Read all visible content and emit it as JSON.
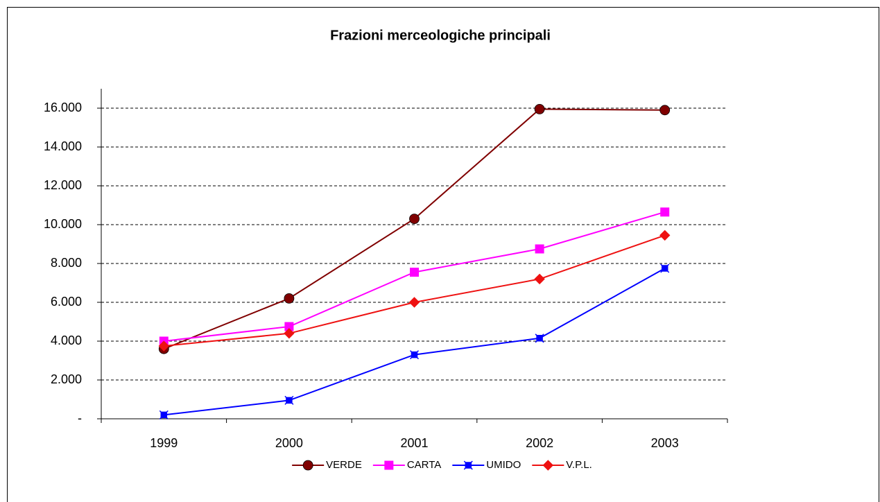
{
  "chart_data": {
    "type": "line",
    "title": "Frazioni merceologiche principali",
    "categories": [
      "1999",
      "2000",
      "2001",
      "2002",
      "2003"
    ],
    "series": [
      {
        "name": "VERDE",
        "color": "#800000",
        "marker": "circle",
        "values": [
          3600,
          6200,
          10300,
          15950,
          15900
        ]
      },
      {
        "name": "CARTA",
        "color": "#ff00ff",
        "marker": "square",
        "values": [
          4000,
          4750,
          7550,
          8750,
          10650
        ]
      },
      {
        "name": "UMIDO",
        "color": "#0000ff",
        "marker": "star",
        "values": [
          200,
          950,
          3300,
          4150,
          7750
        ]
      },
      {
        "name": "V.P.L.",
        "color": "#ee1111",
        "marker": "diamond",
        "values": [
          3750,
          4400,
          6000,
          7200,
          9450
        ]
      }
    ],
    "ylim": [
      0,
      17000
    ],
    "yticks": [
      {
        "value": 0,
        "label": "-"
      },
      {
        "value": 2000,
        "label": "2.000"
      },
      {
        "value": 4000,
        "label": "4.000"
      },
      {
        "value": 6000,
        "label": "6.000"
      },
      {
        "value": 8000,
        "label": "8.000"
      },
      {
        "value": 10000,
        "label": "10.000"
      },
      {
        "value": 12000,
        "label": "12.000"
      },
      {
        "value": 14000,
        "label": "14.000"
      },
      {
        "value": 16000,
        "label": "16.000"
      }
    ],
    "grid": true,
    "legend": "bottom"
  }
}
